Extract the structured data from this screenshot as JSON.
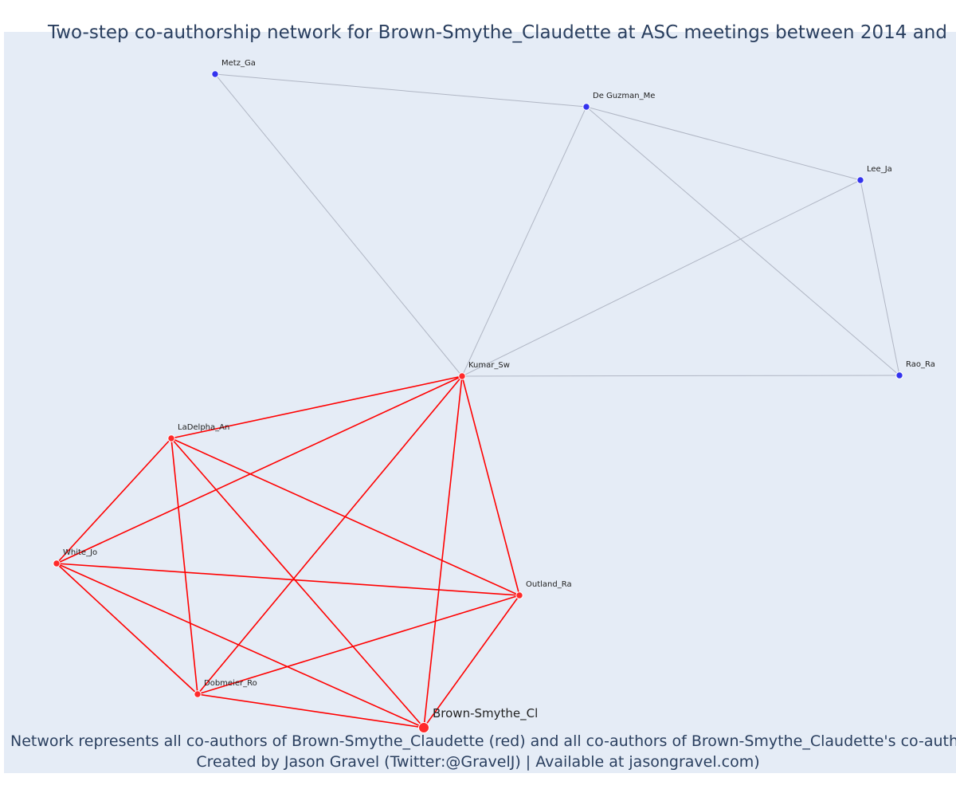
{
  "title": "Two-step co-authorship network for Brown-Smythe_Claudette at ASC meetings between 2014 and",
  "caption_line1": "Network represents all co-authors of Brown-Smythe_Claudette (red) and all co-authors of Brown-Smythe_Claudette's co-authors",
  "caption_line2": "Created by Jason Gravel (Twitter:@GravelJ) | Available at jasongravel.com)",
  "colors": {
    "background": "#e5ecf6",
    "red": "#ff0000",
    "red_node": "#ff2a2a",
    "blue_node": "#3333ee",
    "gray_edge": "#b0b6c4"
  },
  "nodes": [
    {
      "id": "metz",
      "label": "Metz_Ga",
      "group": "blue"
    },
    {
      "id": "deguzman",
      "label": "De Guzman_Me",
      "group": "blue"
    },
    {
      "id": "lee",
      "label": "Lee_Ja",
      "group": "blue"
    },
    {
      "id": "rao",
      "label": "Rao_Ra",
      "group": "blue"
    },
    {
      "id": "kumar",
      "label": "Kumar_Sw",
      "group": "red"
    },
    {
      "id": "ladelpha",
      "label": "LaDelpha_An",
      "group": "red"
    },
    {
      "id": "white",
      "label": "White_Jo",
      "group": "red"
    },
    {
      "id": "outland",
      "label": "Outland_Ra",
      "group": "red"
    },
    {
      "id": "dobmeier",
      "label": "Dobmeier_Ro",
      "group": "red"
    },
    {
      "id": "brown",
      "label": "Brown-Smythe_Cl",
      "group": "ego"
    }
  ],
  "edges": [
    {
      "from": "metz",
      "to": "deguzman",
      "type": "gray"
    },
    {
      "from": "metz",
      "to": "kumar",
      "type": "gray"
    },
    {
      "from": "deguzman",
      "to": "lee",
      "type": "gray"
    },
    {
      "from": "deguzman",
      "to": "kumar",
      "type": "gray"
    },
    {
      "from": "deguzman",
      "to": "rao",
      "type": "gray"
    },
    {
      "from": "lee",
      "to": "kumar",
      "type": "gray"
    },
    {
      "from": "lee",
      "to": "rao",
      "type": "gray"
    },
    {
      "from": "kumar",
      "to": "rao",
      "type": "gray"
    },
    {
      "from": "kumar",
      "to": "ladelpha",
      "type": "red"
    },
    {
      "from": "kumar",
      "to": "white",
      "type": "red"
    },
    {
      "from": "kumar",
      "to": "outland",
      "type": "red"
    },
    {
      "from": "kumar",
      "to": "dobmeier",
      "type": "red"
    },
    {
      "from": "kumar",
      "to": "brown",
      "type": "red"
    },
    {
      "from": "ladelpha",
      "to": "white",
      "type": "red"
    },
    {
      "from": "ladelpha",
      "to": "outland",
      "type": "red"
    },
    {
      "from": "ladelpha",
      "to": "dobmeier",
      "type": "red"
    },
    {
      "from": "ladelpha",
      "to": "brown",
      "type": "red"
    },
    {
      "from": "white",
      "to": "outland",
      "type": "red"
    },
    {
      "from": "white",
      "to": "dobmeier",
      "type": "red"
    },
    {
      "from": "white",
      "to": "brown",
      "type": "red"
    },
    {
      "from": "outland",
      "to": "dobmeier",
      "type": "red"
    },
    {
      "from": "outland",
      "to": "brown",
      "type": "red"
    },
    {
      "from": "dobmeier",
      "to": "brown",
      "type": "red"
    }
  ]
}
